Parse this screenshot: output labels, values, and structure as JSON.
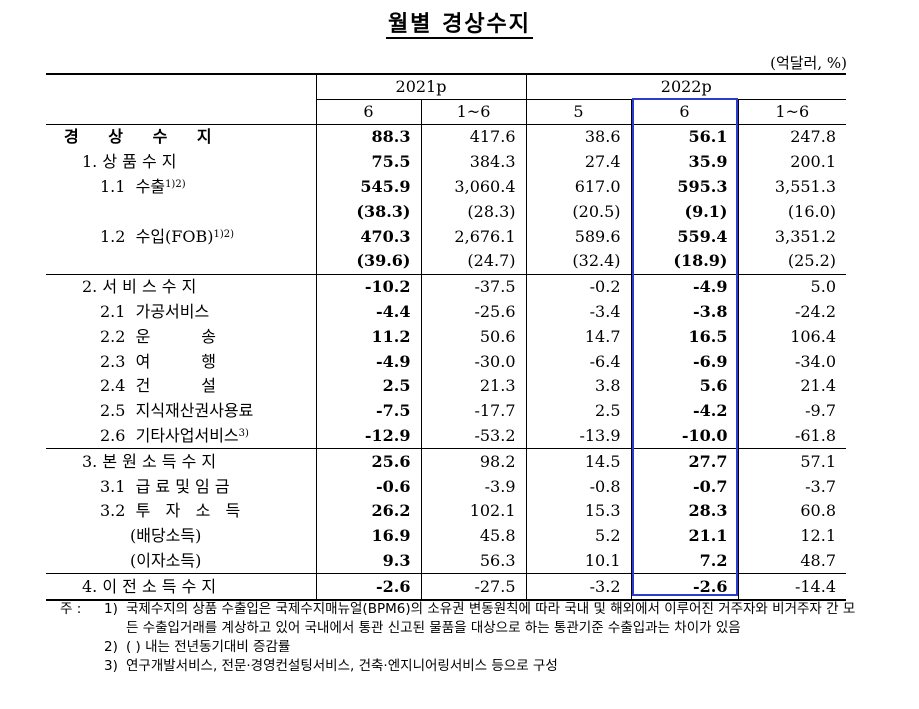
{
  "title": "월별 경상수지",
  "unit": "(억달러, %)",
  "header": {
    "years": [
      "2021p",
      "2022p"
    ],
    "cols": [
      "6",
      "1~6",
      "5",
      "6",
      "1~6"
    ]
  },
  "rows": [
    {
      "label": "경 상 수 지",
      "level": 0,
      "values": [
        "88.3",
        "417.6",
        "38.6",
        "56.1",
        "247.8"
      ]
    },
    {
      "label": "1. 상 품 수 지",
      "level": 1,
      "values": [
        "75.5",
        "384.3",
        "27.4",
        "35.9",
        "200.1"
      ]
    },
    {
      "label": "1.1  수출",
      "sup": "1)2)",
      "level": 2,
      "values": [
        "545.9",
        "3,060.4",
        "617.0",
        "595.3",
        "3,551.3"
      ]
    },
    {
      "label": "",
      "level": 2,
      "values": [
        "(38.3)",
        "(28.3)",
        "(20.5)",
        "(9.1)",
        "(16.0)"
      ]
    },
    {
      "label": "1.2  수입(FOB)",
      "sup": "1)2)",
      "level": 2,
      "values": [
        "470.3",
        "2,676.1",
        "589.6",
        "559.4",
        "3,351.2"
      ]
    },
    {
      "label": "",
      "level": 2,
      "values": [
        "(39.6)",
        "(24.7)",
        "(32.4)",
        "(18.9)",
        "(25.2)"
      ]
    },
    {
      "label": "2. 서 비 스 수 지",
      "level": 1,
      "sep": true,
      "values": [
        "-10.2",
        "-37.5",
        "-0.2",
        "-4.9",
        "5.0"
      ]
    },
    {
      "label": "2.1  가공서비스",
      "level": 2,
      "values": [
        "-4.4",
        "-25.6",
        "-3.4",
        "-3.8",
        "-24.2"
      ]
    },
    {
      "label": "2.2  운          송",
      "level": 2,
      "values": [
        "11.2",
        "50.6",
        "14.7",
        "16.5",
        "106.4"
      ]
    },
    {
      "label": "2.3  여          행",
      "level": 2,
      "values": [
        "-4.9",
        "-30.0",
        "-6.4",
        "-6.9",
        "-34.0"
      ]
    },
    {
      "label": "2.4  건          설",
      "level": 2,
      "values": [
        "2.5",
        "21.3",
        "3.8",
        "5.6",
        "21.4"
      ]
    },
    {
      "label": "2.5  지식재산권사용료",
      "level": 2,
      "values": [
        "-7.5",
        "-17.7",
        "2.5",
        "-4.2",
        "-9.7"
      ]
    },
    {
      "label": "2.6  기타사업서비스",
      "sup": "3)",
      "level": 2,
      "values": [
        "-12.9",
        "-53.2",
        "-13.9",
        "-10.0",
        "-61.8"
      ]
    },
    {
      "label": "3. 본 원 소 득 수 지",
      "level": 1,
      "sep": true,
      "values": [
        "25.6",
        "98.2",
        "14.5",
        "27.7",
        "57.1"
      ]
    },
    {
      "label": "3.1  급 료 및 임 금",
      "level": 2,
      "values": [
        "-0.6",
        "-3.9",
        "-0.8",
        "-0.7",
        "-3.7"
      ]
    },
    {
      "label": "3.2  투   자   소   득",
      "level": 2,
      "values": [
        "26.2",
        "102.1",
        "15.3",
        "28.3",
        "60.8"
      ]
    },
    {
      "label": "(배당소득)",
      "level": 3,
      "values": [
        "16.9",
        "45.8",
        "5.2",
        "21.1",
        "12.1"
      ]
    },
    {
      "label": "(이자소득)",
      "level": 3,
      "values": [
        "9.3",
        "56.3",
        "10.1",
        "7.2",
        "48.7"
      ]
    },
    {
      "label": "4. 이 전 소 득 수 지",
      "level": 1,
      "sep": true,
      "last": true,
      "values": [
        "-2.6",
        "-27.5",
        "-3.2",
        "-2.6",
        "-14.4"
      ]
    }
  ],
  "notes": {
    "lead": "주 :",
    "items": [
      {
        "num": "1)",
        "text": "국제수지의 상품 수출입은 국제수지매뉴얼(BPM6)의 소유권 변동원칙에 따라 국내 및 해외에서 이루어진 거주자와 비거주자 간 모든 수출입거래를 계상하고 있어 국내에서 통관 신고된 물품을 대상으로 하는 통관기준 수출입과는 차이가 있음"
      },
      {
        "num": "2)",
        "text": "(   ) 내는 전년동기대비 증감률"
      },
      {
        "num": "3)",
        "text": "연구개발서비스, 전문·경영컨설팅서비스, 건축·엔지니어링서비스 등으로 구성"
      }
    ]
  }
}
